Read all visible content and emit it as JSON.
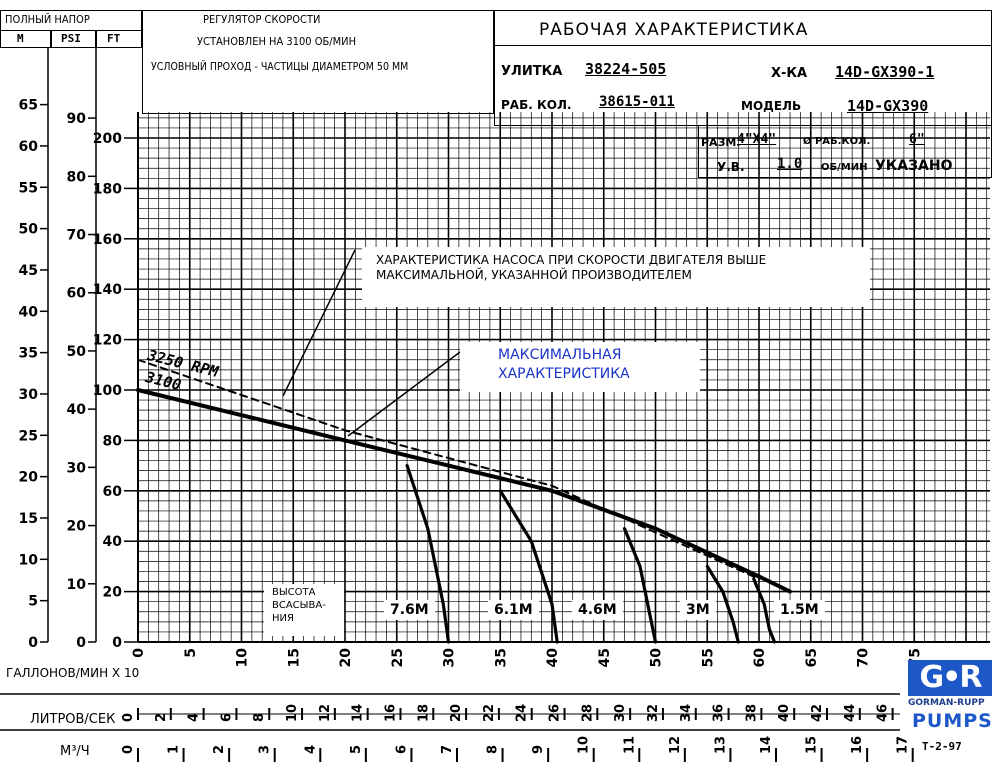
{
  "header": {
    "total_head": "ПОЛНЫЙ НАПОР",
    "unit_m": "M",
    "unit_psi": "PSI",
    "unit_ft": "FT",
    "speed_regulator": "РЕГУЛЯТОР СКОРОСТИ",
    "speed_set": "УСТАНОВЛЕН НА 3100 ОБ/МИН",
    "solids": "УСЛОВНЫЙ ПРОХОД - ЧАСТИЦЫ ДИАМЕТРОМ 50 ММ",
    "title": "РАБОЧАЯ ХАРАКТЕРИСТИКА"
  },
  "fields": {
    "volute_label": "УЛИТКА",
    "volute_value": "38224-505",
    "curve_label": "Х-КА",
    "curve_value": "14D-GX390-1",
    "impeller_label": "РАБ. КОЛ.",
    "impeller_value": "38615-011",
    "model_label": "МОДЕЛЬ",
    "model_value": "14D-GX390",
    "size_label": "РАЗМ.",
    "size_value": "4\"X4\"",
    "diam_label": "Ø РАБ.КОЛ.",
    "diam_value": "6\"",
    "sg_label": "У.В.",
    "sg_value": "1.0",
    "rpm_label": "ОБ/МИН",
    "rpm_value": "УКАЗАНО"
  },
  "notes": {
    "overspeed": "ХАРАКТЕРИСТИКА НАСОСА ПРИ СКОРОСТИ ДВИГАТЕЛЯ ВЫШЕ МАКСИМАЛЬНОЙ, УКАЗАННОЙ ПРОИЗВОДИТЕЛЕМ",
    "max_curve": "МАКСИМАЛЬНАЯ ХАРАКТЕРИСТИКА",
    "suction_lift": "ВЫСОТА ВСАСЫВА-НИЯ"
  },
  "axes": {
    "gpm_label": "ГАЛЛОНОВ/МИН X 10",
    "lps_label": "ЛИТРОВ/СЕК",
    "m3h_label": "M³/Ч"
  },
  "logo": {
    "brand": "GORMAN-RUPP",
    "pumps": "PUMPS",
    "code": "T-2-97"
  },
  "chart_data": {
    "type": "line",
    "x_unit": "GPM x 10",
    "xlim": [
      0,
      80
    ],
    "ylim_ft": [
      0,
      210
    ],
    "x_ticks": [
      0,
      5,
      10,
      15,
      20,
      25,
      30,
      35,
      40,
      45,
      50,
      55,
      60,
      65,
      70,
      75
    ],
    "y_ticks_ft": [
      0,
      20,
      40,
      60,
      80,
      100,
      120,
      140,
      160,
      180,
      200
    ],
    "y_ticks_m": [
      0,
      5,
      10,
      15,
      20,
      25,
      30,
      35,
      40,
      45,
      50,
      55,
      60,
      65
    ],
    "y_ticks_psi": [
      0,
      10,
      20,
      30,
      40,
      50,
      60,
      70,
      80,
      90
    ],
    "lps_ticks": [
      0,
      2,
      4,
      6,
      8,
      10,
      12,
      14,
      16,
      18,
      20,
      22,
      24,
      26,
      28,
      30,
      32,
      34,
      36,
      38,
      40,
      42,
      44,
      46
    ],
    "m3h_ticks": [
      0,
      1,
      2,
      3,
      4,
      5,
      6,
      7,
      8,
      9,
      10,
      11,
      12,
      13,
      14,
      15,
      16,
      17
    ],
    "series": [
      {
        "name": "3250 RPM",
        "style": "dashed",
        "x": [
          0,
          20,
          40,
          60
        ],
        "y": [
          112,
          84,
          62,
          25
        ]
      },
      {
        "name": "3100",
        "style": "solid",
        "x": [
          0,
          10,
          20,
          30,
          40,
          50,
          60,
          63
        ],
        "y": [
          100,
          90,
          80,
          70,
          60,
          45,
          26,
          20
        ]
      }
    ],
    "suction_lift_curves": [
      {
        "name": "7.6M",
        "x": [
          26,
          28,
          29.5,
          30
        ],
        "y": [
          70,
          45,
          15,
          0
        ]
      },
      {
        "name": "6.1M",
        "x": [
          35,
          38,
          40,
          40.5
        ],
        "y": [
          60,
          40,
          15,
          0
        ]
      },
      {
        "name": "4.6M",
        "x": [
          47,
          48.5,
          49.5,
          50
        ],
        "y": [
          45,
          30,
          10,
          0
        ]
      },
      {
        "name": "3M",
        "x": [
          55,
          56.5,
          57.5,
          58
        ],
        "y": [
          30,
          20,
          8,
          0
        ]
      },
      {
        "name": "1.5M",
        "x": [
          59.5,
          60.5,
          61,
          61.5
        ],
        "y": [
          25,
          15,
          5,
          0
        ]
      }
    ],
    "curve_labels": [
      "3250 RPM",
      "3100"
    ]
  }
}
